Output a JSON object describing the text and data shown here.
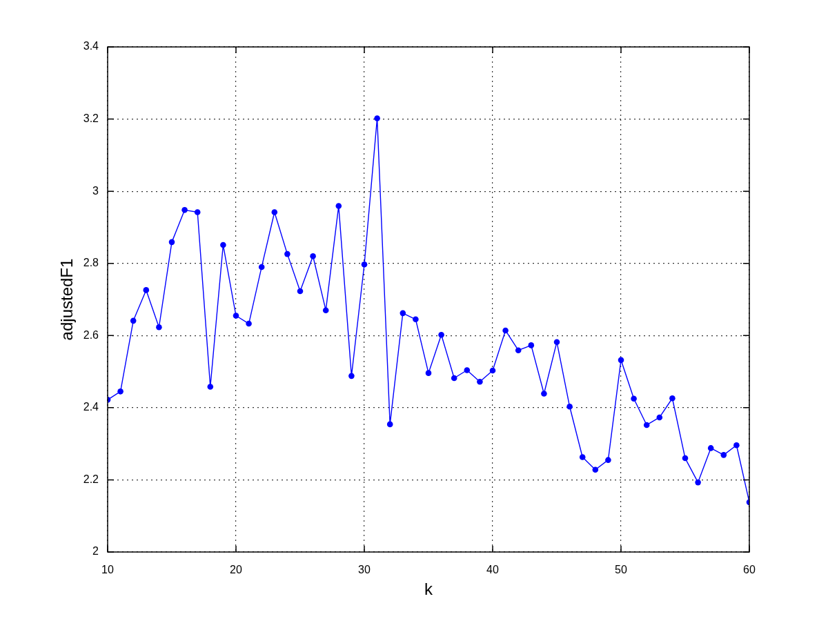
{
  "chart_data": {
    "type": "line",
    "xlabel": "k",
    "ylabel": "adjustedF1",
    "x": [
      10,
      11,
      12,
      13,
      14,
      15,
      16,
      17,
      18,
      19,
      20,
      21,
      22,
      23,
      24,
      25,
      26,
      27,
      28,
      29,
      30,
      31,
      32,
      33,
      34,
      35,
      36,
      37,
      38,
      39,
      40,
      41,
      42,
      43,
      44,
      45,
      46,
      47,
      48,
      49,
      50,
      51,
      52,
      53,
      54,
      55,
      56,
      57,
      58,
      59,
      60
    ],
    "values": [
      2.422,
      2.445,
      2.641,
      2.726,
      2.623,
      2.859,
      2.948,
      2.942,
      2.458,
      2.851,
      2.655,
      2.633,
      2.79,
      2.942,
      2.826,
      2.723,
      2.82,
      2.67,
      2.959,
      2.488,
      2.797,
      3.202,
      2.354,
      2.662,
      2.645,
      2.496,
      2.602,
      2.482,
      2.504,
      2.472,
      2.503,
      2.614,
      2.559,
      2.573,
      2.439,
      2.582,
      2.403,
      2.263,
      2.228,
      2.255,
      2.532,
      2.425,
      2.352,
      2.373,
      2.426,
      2.26,
      2.193,
      2.288,
      2.269,
      2.296,
      2.138
    ],
    "color": "#0000ff",
    "marker": "circle",
    "line_style": "solid",
    "xlim": [
      10,
      60
    ],
    "ylim": [
      2,
      3.4
    ],
    "xticks": [
      10,
      20,
      30,
      40,
      50,
      60
    ],
    "yticks": [
      2,
      2.2,
      2.4,
      2.6,
      2.8,
      3,
      3.2,
      3.4
    ],
    "grid": true
  }
}
